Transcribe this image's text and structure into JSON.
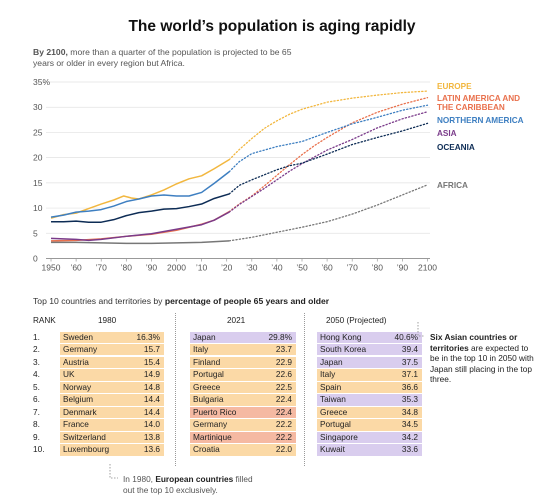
{
  "title": "The world’s population is aging rapidly",
  "subtitle_bold": "By 2100,",
  "subtitle_rest": "more than a quarter of the population is projected to be 65 years or older in every region but Africa.",
  "chart_data": {
    "type": "line",
    "x_range": [
      1948,
      2101
    ],
    "ylim": [
      0,
      35
    ],
    "yticks": [
      0,
      5,
      10,
      15,
      20,
      25,
      30,
      35
    ],
    "ytick_labels": [
      "0",
      "5",
      "10",
      "15",
      "20",
      "25",
      "30",
      "35%"
    ],
    "xticks": [
      1950,
      1960,
      1970,
      1980,
      1990,
      2000,
      2010,
      2020,
      2030,
      2040,
      2050,
      2060,
      2070,
      2080,
      2090,
      2100
    ],
    "xtick_labels": [
      "1950",
      "’60",
      "’70",
      "’80",
      "’90",
      "2000",
      "’10",
      "’20",
      "’30",
      "’40",
      "’50",
      "’60",
      "’70",
      "’80",
      "’90",
      "2100"
    ],
    "projection_start": 2021,
    "series": [
      {
        "name": "EUROPE",
        "color": "#f2b73f",
        "points": [
          [
            1950,
            8.0
          ],
          [
            1955,
            8.7
          ],
          [
            1960,
            9.0
          ],
          [
            1965,
            9.9
          ],
          [
            1970,
            10.8
          ],
          [
            1975,
            11.6
          ],
          [
            1979,
            12.4
          ],
          [
            1982,
            12.0
          ],
          [
            1985,
            11.8
          ],
          [
            1990,
            12.6
          ],
          [
            1995,
            13.6
          ],
          [
            2000,
            14.8
          ],
          [
            2005,
            15.8
          ],
          [
            2010,
            16.4
          ],
          [
            2015,
            17.8
          ],
          [
            2021,
            19.6
          ],
          [
            2025,
            21.6
          ],
          [
            2030,
            23.8
          ],
          [
            2035,
            25.8
          ],
          [
            2040,
            27.3
          ],
          [
            2045,
            28.6
          ],
          [
            2050,
            29.6
          ],
          [
            2060,
            31.0
          ],
          [
            2070,
            31.8
          ],
          [
            2080,
            32.4
          ],
          [
            2090,
            32.9
          ],
          [
            2100,
            33.2
          ]
        ]
      },
      {
        "name": "LATIN AMERICA AND THE CARIBBEAN",
        "color": "#e9714d",
        "points": [
          [
            1950,
            3.5
          ],
          [
            1960,
            3.6
          ],
          [
            1970,
            3.9
          ],
          [
            1980,
            4.4
          ],
          [
            1990,
            4.8
          ],
          [
            2000,
            5.6
          ],
          [
            2010,
            6.8
          ],
          [
            2015,
            7.6
          ],
          [
            2021,
            9.3
          ],
          [
            2025,
            10.8
          ],
          [
            2030,
            12.4
          ],
          [
            2035,
            14.4
          ],
          [
            2040,
            16.5
          ],
          [
            2045,
            18.6
          ],
          [
            2050,
            20.6
          ],
          [
            2055,
            22.4
          ],
          [
            2060,
            24.0
          ],
          [
            2070,
            26.9
          ],
          [
            2080,
            29.0
          ],
          [
            2090,
            30.6
          ],
          [
            2100,
            31.9
          ]
        ]
      },
      {
        "name": "NORTHERN AMERICA",
        "color": "#3e7fc1",
        "points": [
          [
            1950,
            8.2
          ],
          [
            1955,
            8.6
          ],
          [
            1960,
            9.2
          ],
          [
            1965,
            9.4
          ],
          [
            1970,
            9.7
          ],
          [
            1975,
            10.4
          ],
          [
            1980,
            11.3
          ],
          [
            1985,
            11.8
          ],
          [
            1990,
            12.4
          ],
          [
            1995,
            12.6
          ],
          [
            2000,
            12.4
          ],
          [
            2005,
            12.4
          ],
          [
            2010,
            13.1
          ],
          [
            2015,
            14.9
          ],
          [
            2021,
            17.2
          ],
          [
            2025,
            19.2
          ],
          [
            2030,
            20.8
          ],
          [
            2040,
            22.2
          ],
          [
            2050,
            23.2
          ],
          [
            2060,
            25.0
          ],
          [
            2070,
            26.7
          ],
          [
            2080,
            28.0
          ],
          [
            2090,
            29.4
          ],
          [
            2100,
            30.4
          ]
        ]
      },
      {
        "name": "ASIA",
        "color": "#7a3b8a",
        "points": [
          [
            1950,
            4.0
          ],
          [
            1960,
            3.8
          ],
          [
            1965,
            3.6
          ],
          [
            1970,
            3.8
          ],
          [
            1980,
            4.4
          ],
          [
            1990,
            4.9
          ],
          [
            2000,
            5.8
          ],
          [
            2010,
            6.7
          ],
          [
            2015,
            7.6
          ],
          [
            2021,
            9.2
          ],
          [
            2025,
            10.7
          ],
          [
            2030,
            12.3
          ],
          [
            2035,
            13.9
          ],
          [
            2040,
            15.6
          ],
          [
            2045,
            17.3
          ],
          [
            2050,
            18.8
          ],
          [
            2060,
            21.5
          ],
          [
            2070,
            23.6
          ],
          [
            2080,
            25.9
          ],
          [
            2090,
            27.7
          ],
          [
            2100,
            29.1
          ]
        ]
      },
      {
        "name": "OCEANIA",
        "color": "#0d2c55",
        "points": [
          [
            1950,
            7.3
          ],
          [
            1955,
            7.3
          ],
          [
            1960,
            7.4
          ],
          [
            1965,
            7.2
          ],
          [
            1970,
            7.2
          ],
          [
            1975,
            7.7
          ],
          [
            1980,
            8.5
          ],
          [
            1985,
            9.1
          ],
          [
            1990,
            9.4
          ],
          [
            1995,
            9.8
          ],
          [
            2000,
            9.9
          ],
          [
            2005,
            10.3
          ],
          [
            2010,
            10.8
          ],
          [
            2015,
            11.9
          ],
          [
            2021,
            12.8
          ],
          [
            2025,
            14.5
          ],
          [
            2030,
            15.6
          ],
          [
            2035,
            16.6
          ],
          [
            2040,
            17.6
          ],
          [
            2045,
            18.4
          ],
          [
            2050,
            18.9
          ],
          [
            2060,
            20.7
          ],
          [
            2070,
            22.6
          ],
          [
            2080,
            24.0
          ],
          [
            2090,
            25.3
          ],
          [
            2100,
            26.8
          ]
        ]
      },
      {
        "name": "AFRICA",
        "color": "#777777",
        "points": [
          [
            1950,
            3.2
          ],
          [
            1960,
            3.2
          ],
          [
            1970,
            3.1
          ],
          [
            1980,
            3.0
          ],
          [
            1990,
            3.0
          ],
          [
            2000,
            3.1
          ],
          [
            2010,
            3.2
          ],
          [
            2021,
            3.5
          ],
          [
            2030,
            4.2
          ],
          [
            2040,
            5.2
          ],
          [
            2050,
            6.2
          ],
          [
            2060,
            7.3
          ],
          [
            2070,
            8.8
          ],
          [
            2080,
            10.6
          ],
          [
            2090,
            12.6
          ],
          [
            2100,
            14.6
          ]
        ]
      }
    ]
  },
  "legend": [
    {
      "name": "EUROPE",
      "color": "#f2b73f"
    },
    {
      "name": "LATIN AMERICA AND",
      "color": "#e9714d"
    },
    {
      "name": "THE CARIBBEAN",
      "color": "#e9714d"
    },
    {
      "name": "NORTHERN AMERICA",
      "color": "#3e7fc1"
    },
    {
      "name": "ASIA",
      "color": "#7a3b8a"
    },
    {
      "name": "OCEANIA",
      "color": "#0d2c55"
    },
    {
      "name": "AFRICA",
      "color": "#777777"
    }
  ],
  "table": {
    "caption_prefix": "Top 10 countries and territories by",
    "caption_bold": "percentage of people 65 years and older",
    "rank_header": "RANK",
    "ranks": [
      "1.",
      "2.",
      "3.",
      "4.",
      "5.",
      "6.",
      "7.",
      "8.",
      "9.",
      "10."
    ],
    "columns": [
      {
        "header": "1980",
        "rows": [
          {
            "name": "Sweden",
            "value": "16.3%",
            "region": "eu"
          },
          {
            "name": "Germany",
            "value": "15.7",
            "region": "eu"
          },
          {
            "name": "Austria",
            "value": "15.4",
            "region": "eu"
          },
          {
            "name": "UK",
            "value": "14.9",
            "region": "eu"
          },
          {
            "name": "Norway",
            "value": "14.8",
            "region": "eu"
          },
          {
            "name": "Belgium",
            "value": "14.4",
            "region": "eu"
          },
          {
            "name": "Denmark",
            "value": "14.4",
            "region": "eu"
          },
          {
            "name": "France",
            "value": "14.0",
            "region": "eu"
          },
          {
            "name": "Switzerland",
            "value": "13.8",
            "region": "eu"
          },
          {
            "name": "Luxembourg",
            "value": "13.6",
            "region": "eu"
          }
        ]
      },
      {
        "header": "2021",
        "rows": [
          {
            "name": "Japan",
            "value": "29.8%",
            "region": "as"
          },
          {
            "name": "Italy",
            "value": "23.7",
            "region": "eu"
          },
          {
            "name": "Finland",
            "value": "22.9",
            "region": "eu"
          },
          {
            "name": "Portugal",
            "value": "22.6",
            "region": "eu"
          },
          {
            "name": "Greece",
            "value": "22.5",
            "region": "eu"
          },
          {
            "name": "Bulgaria",
            "value": "22.4",
            "region": "eu"
          },
          {
            "name": "Puerto Rico",
            "value": "22.4",
            "region": "la"
          },
          {
            "name": "Germany",
            "value": "22.2",
            "region": "eu"
          },
          {
            "name": "Martinique",
            "value": "22.2",
            "region": "la"
          },
          {
            "name": "Croatia",
            "value": "22.0",
            "region": "eu"
          }
        ]
      },
      {
        "header": "2050 (Projected)",
        "rows": [
          {
            "name": "Hong Kong",
            "value": "40.6%",
            "region": "as"
          },
          {
            "name": "South Korea",
            "value": "39.4",
            "region": "as"
          },
          {
            "name": "Japan",
            "value": "37.5",
            "region": "as"
          },
          {
            "name": "Italy",
            "value": "37.1",
            "region": "eu"
          },
          {
            "name": "Spain",
            "value": "36.6",
            "region": "eu"
          },
          {
            "name": "Taiwan",
            "value": "35.3",
            "region": "as"
          },
          {
            "name": "Greece",
            "value": "34.8",
            "region": "eu"
          },
          {
            "name": "Portugal",
            "value": "34.5",
            "region": "eu"
          },
          {
            "name": "Singapore",
            "value": "34.2",
            "region": "as"
          },
          {
            "name": "Kuwait",
            "value": "33.6",
            "region": "as"
          }
        ]
      }
    ]
  },
  "notes": {
    "asia_bold": "Six Asian countries or territories",
    "asia_rest": "are expected to be in the top 10 in 2050 with Japan still placing in the top three.",
    "europe_prefix": "In 1980,",
    "europe_bold": "European countries",
    "europe_rest": "filled out the top 10 exclusively."
  }
}
